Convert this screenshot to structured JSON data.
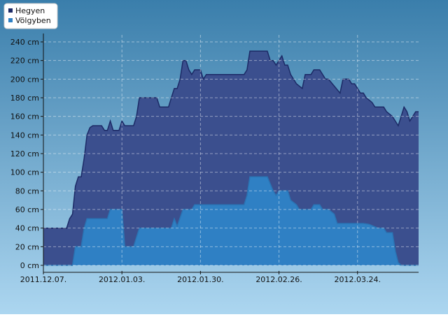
{
  "chart_data": {
    "type": "area",
    "legend": "top-left",
    "grid": true,
    "xlim": [
      "2011-12-07",
      "2012-04-14"
    ],
    "xticks": [
      {
        "value": "2011-12-07",
        "label": "2011.12.07."
      },
      {
        "value": "2012-01-03",
        "label": "2012.01.03."
      },
      {
        "value": "2012-01-30",
        "label": "2012.01.30."
      },
      {
        "value": "2012-02-26",
        "label": "2012.02.26."
      },
      {
        "value": "2012-03-24",
        "label": "2012.03.24."
      }
    ],
    "ylim": [
      0,
      240
    ],
    "yticks": [
      {
        "value": 0,
        "label": "0 cm"
      },
      {
        "value": 20,
        "label": "20 cm"
      },
      {
        "value": 40,
        "label": "40 cm"
      },
      {
        "value": 60,
        "label": "60 cm"
      },
      {
        "value": 80,
        "label": "80 cm"
      },
      {
        "value": 100,
        "label": "100 cm"
      },
      {
        "value": 120,
        "label": "120 cm"
      },
      {
        "value": 140,
        "label": "140 cm"
      },
      {
        "value": 160,
        "label": "160 cm"
      },
      {
        "value": 180,
        "label": "180 cm"
      },
      {
        "value": 200,
        "label": "200 cm"
      },
      {
        "value": 220,
        "label": "220 cm"
      },
      {
        "value": 240,
        "label": "240 cm"
      }
    ],
    "series": [
      {
        "name": "Hegyen",
        "color": "#3b4f8e",
        "line_color": "#1c2a66",
        "x": [
          "2011-12-07",
          "2011-12-15",
          "2011-12-16",
          "2011-12-17",
          "2011-12-18",
          "2011-12-19",
          "2011-12-20",
          "2011-12-21",
          "2011-12-22",
          "2011-12-23",
          "2011-12-24",
          "2011-12-27",
          "2011-12-28",
          "2011-12-29",
          "2011-12-30",
          "2011-12-31",
          "2012-01-02",
          "2012-01-03",
          "2012-01-04",
          "2012-01-07",
          "2012-01-08",
          "2012-01-09",
          "2012-01-15",
          "2012-01-16",
          "2012-01-19",
          "2012-01-20",
          "2012-01-21",
          "2012-01-22",
          "2012-01-23",
          "2012-01-24",
          "2012-01-25",
          "2012-01-26",
          "2012-01-27",
          "2012-01-28",
          "2012-01-30",
          "2012-01-31",
          "2012-02-01",
          "2012-02-14",
          "2012-02-15",
          "2012-02-16",
          "2012-02-22",
          "2012-02-23",
          "2012-02-24",
          "2012-02-25",
          "2012-02-27",
          "2012-02-28",
          "2012-02-29",
          "2012-03-01",
          "2012-03-03",
          "2012-03-05",
          "2012-03-06",
          "2012-03-08",
          "2012-03-09",
          "2012-03-11",
          "2012-03-13",
          "2012-03-14",
          "2012-03-18",
          "2012-03-19",
          "2012-03-21",
          "2012-03-22",
          "2012-03-23",
          "2012-03-25",
          "2012-03-26",
          "2012-03-27",
          "2012-03-29",
          "2012-03-30",
          "2012-04-02",
          "2012-04-03",
          "2012-04-05",
          "2012-04-07",
          "2012-04-08",
          "2012-04-09",
          "2012-04-10",
          "2012-04-11",
          "2012-04-13",
          "2012-04-14"
        ],
        "values": [
          40,
          40,
          50,
          55,
          85,
          95,
          95,
          115,
          140,
          148,
          150,
          150,
          145,
          145,
          155,
          145,
          145,
          155,
          150,
          150,
          160,
          180,
          180,
          170,
          170,
          180,
          190,
          190,
          200,
          220,
          220,
          210,
          205,
          210,
          210,
          200,
          205,
          205,
          210,
          230,
          230,
          220,
          220,
          215,
          225,
          215,
          215,
          205,
          195,
          190,
          205,
          205,
          210,
          210,
          200,
          200,
          185,
          200,
          200,
          195,
          195,
          185,
          185,
          180,
          175,
          170,
          170,
          165,
          160,
          150,
          160,
          170,
          165,
          155,
          165,
          165
        ]
      },
      {
        "name": "Völgyben",
        "color": "#2f80c4",
        "line_color": "#2a74b4",
        "x": [
          "2011-12-07",
          "2011-12-17",
          "2011-12-18",
          "2011-12-20",
          "2011-12-21",
          "2011-12-22",
          "2011-12-29",
          "2011-12-30",
          "2012-01-03",
          "2012-01-04",
          "2012-01-07",
          "2012-01-09",
          "2012-01-20",
          "2012-01-21",
          "2012-01-22",
          "2012-01-24",
          "2012-01-27",
          "2012-01-28",
          "2012-02-14",
          "2012-02-15",
          "2012-02-16",
          "2012-02-22",
          "2012-02-24",
          "2012-02-25",
          "2012-02-26",
          "2012-02-29",
          "2012-03-01",
          "2012-03-03",
          "2012-03-04",
          "2012-03-08",
          "2012-03-09",
          "2012-03-11",
          "2012-03-12",
          "2012-03-14",
          "2012-03-16",
          "2012-03-17",
          "2012-03-26",
          "2012-03-28",
          "2012-03-31",
          "2012-04-02",
          "2012-04-03",
          "2012-04-05",
          "2012-04-06",
          "2012-04-07",
          "2012-04-08",
          "2012-04-14"
        ],
        "values": [
          0,
          0,
          20,
          20,
          40,
          50,
          50,
          60,
          60,
          20,
          20,
          40,
          40,
          50,
          42,
          60,
          60,
          65,
          65,
          75,
          95,
          95,
          80,
          75,
          80,
          80,
          70,
          65,
          60,
          60,
          65,
          65,
          60,
          60,
          55,
          45,
          45,
          44,
          40,
          40,
          35,
          35,
          15,
          3,
          0,
          0
        ]
      }
    ]
  }
}
